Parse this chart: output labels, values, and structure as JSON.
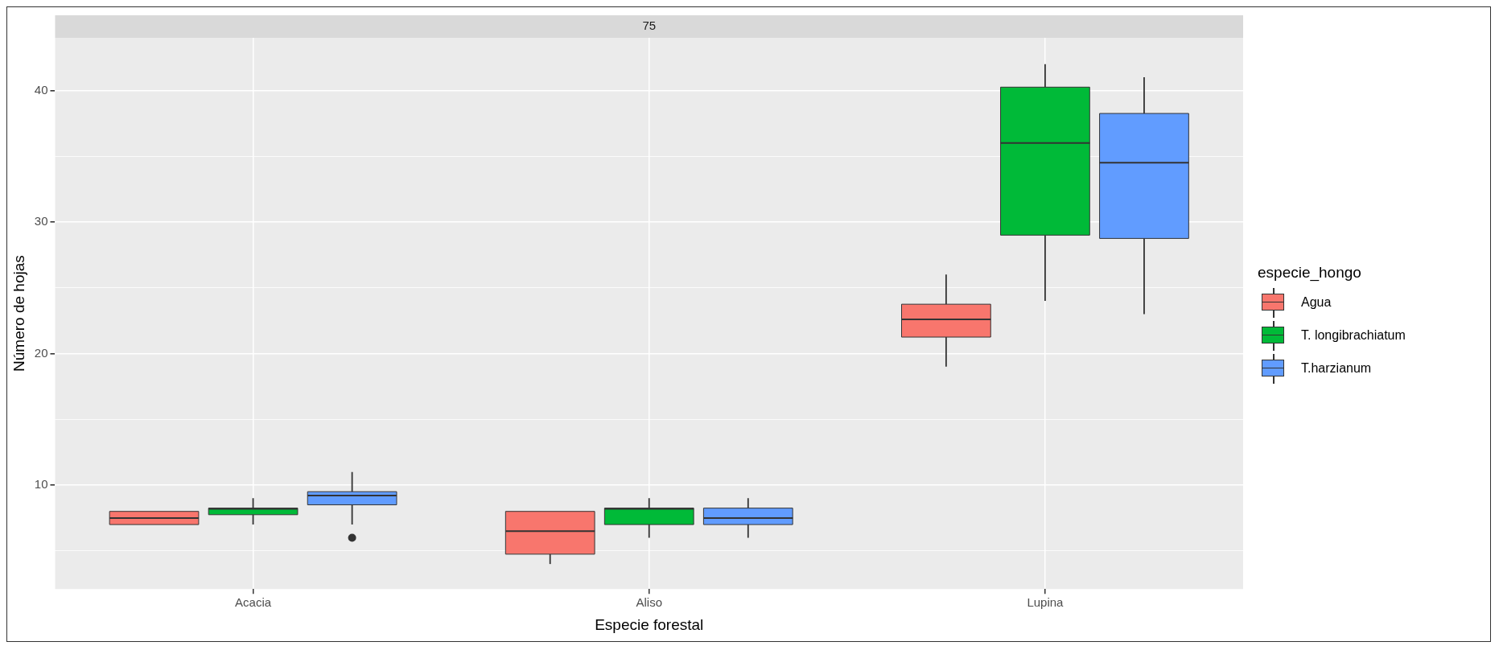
{
  "chart_data": {
    "type": "box",
    "title": "75",
    "xlabel": "Especie forestal",
    "ylabel": "Número de hojas",
    "legend_title": "especie_hongo",
    "categories": [
      "Acacia",
      "Aliso",
      "Lupina"
    ],
    "series": [
      {
        "name": "Agua",
        "color": "#f8766d",
        "boxes": [
          {
            "low": 7,
            "q1": 7,
            "median": 7.5,
            "q3": 8,
            "high": 8
          },
          {
            "low": 4,
            "q1": 4.75,
            "median": 6.5,
            "q3": 8,
            "high": 8
          },
          {
            "low": 19,
            "q1": 21.25,
            "median": 22.6,
            "q3": 23.75,
            "high": 26
          }
        ]
      },
      {
        "name": "T. longibrachiatum",
        "color": "#00ba38",
        "boxes": [
          {
            "low": 7,
            "q1": 7.75,
            "median": 8.2,
            "q3": 8.25,
            "high": 9
          },
          {
            "low": 6,
            "q1": 7,
            "median": 8.2,
            "q3": 8.25,
            "high": 9
          },
          {
            "low": 24,
            "q1": 29,
            "median": 36,
            "q3": 40.25,
            "high": 42
          }
        ]
      },
      {
        "name": "T.harzianum",
        "color": "#619cff",
        "boxes": [
          {
            "low": 7,
            "q1": 8.5,
            "median": 9.2,
            "q3": 9.5,
            "high": 11,
            "outliers": [
              6
            ]
          },
          {
            "low": 6,
            "q1": 7,
            "median": 7.5,
            "q3": 8.25,
            "high": 9
          },
          {
            "low": 23,
            "q1": 28.75,
            "median": 34.5,
            "q3": 38.25,
            "high": 41
          }
        ]
      }
    ],
    "ylim": [
      2.1,
      44
    ],
    "yticks": [
      {
        "value": 5,
        "label": null
      },
      10,
      {
        "value": 15,
        "label": null
      },
      20,
      {
        "value": 25,
        "label": null
      },
      30,
      {
        "value": 35,
        "label": null
      },
      40
    ],
    "grid": true,
    "legend": "right"
  }
}
